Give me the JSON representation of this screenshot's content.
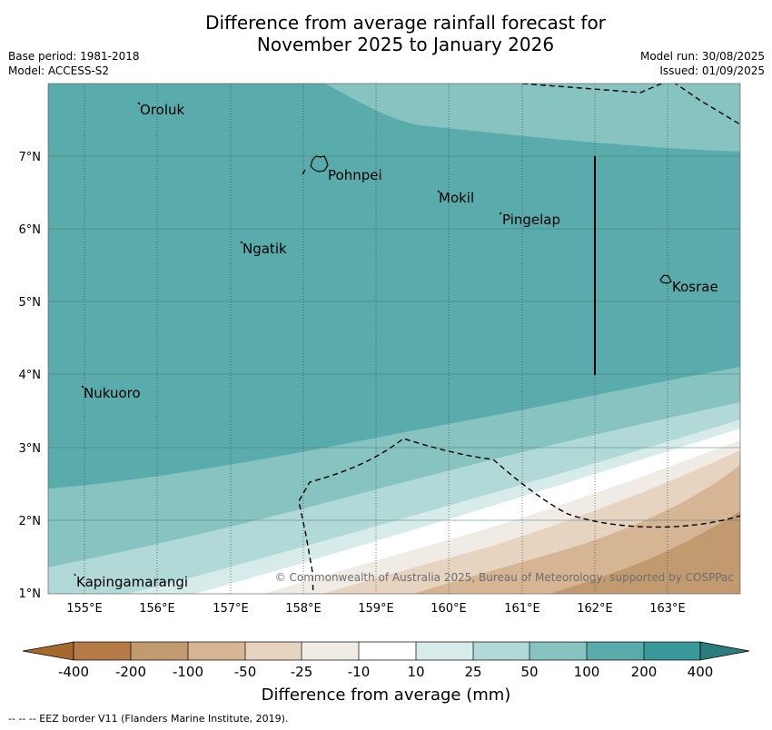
{
  "title": {
    "line1": "Difference from average rainfall forecast for",
    "line2": "November 2025 to January 2026"
  },
  "meta": {
    "base_period": "Base period: 1981-2018",
    "model": "Model: ACCESS-S2",
    "model_run": "Model run: 30/08/2025",
    "issued": "Issued: 01/09/2025"
  },
  "axes": {
    "x_ticks": [
      "155°E",
      "156°E",
      "157°E",
      "158°E",
      "159°E",
      "160°E",
      "161°E",
      "162°E",
      "163°E"
    ],
    "y_ticks": [
      "7°N",
      "6°N",
      "5°N",
      "4°N",
      "3°N",
      "2°N",
      "1°N"
    ],
    "lon_range": [
      154.5,
      164.0
    ],
    "lat_range": [
      1.0,
      8.0
    ]
  },
  "places": [
    {
      "name": "Oroluk",
      "lon": 155.75,
      "lat": 7.65
    },
    {
      "name": "Pohnpei",
      "lon": 158.2,
      "lat": 6.85
    },
    {
      "name": "Mokil",
      "lon": 159.8,
      "lat": 6.4
    },
    {
      "name": "Pingelap",
      "lon": 160.7,
      "lat": 6.2
    },
    {
      "name": "Ngatik",
      "lon": 157.15,
      "lat": 5.8
    },
    {
      "name": "Kosrae",
      "lon": 162.95,
      "lat": 5.3
    },
    {
      "name": "Nukuoro",
      "lon": 154.95,
      "lat": 3.85
    },
    {
      "name": "Kapingamarangi",
      "lon": 154.85,
      "lat": 1.25
    }
  ],
  "copyright": "© Commonwealth of Australia 2025, Bureau of Meteorology, supported by COSPPac",
  "colorbar": {
    "title": "Difference from average (mm)",
    "labels": [
      "-400",
      "-200",
      "-100",
      "-50",
      "-25",
      "-10",
      "10",
      "25",
      "50",
      "100",
      "200",
      "400"
    ],
    "colors": [
      "#a6692d",
      "#b57b47",
      "#c29a70",
      "#d6b594",
      "#e6d3c0",
      "#f1ebe6",
      "#ffffff",
      "#d6ebea",
      "#b0d9d8",
      "#86c3c1",
      "#5aabab",
      "#39999a",
      "#2b7d7c"
    ]
  },
  "legend_note": "--  --  -- EEZ border V11 (Flanders Marine Institute, 2019)."
}
